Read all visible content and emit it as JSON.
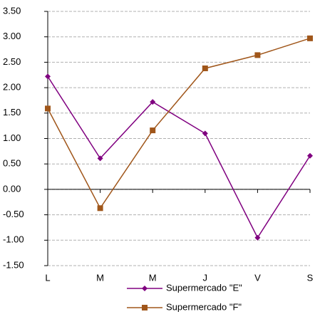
{
  "chart_data": {
    "type": "line",
    "categories": [
      "L",
      "M",
      "M",
      "J",
      "V",
      "S"
    ],
    "series": [
      {
        "name": "Supermercado \"E\"",
        "color": "#800080",
        "marker": "diamond",
        "values": [
          2.22,
          0.61,
          1.72,
          1.1,
          -0.95,
          0.66
        ]
      },
      {
        "name": "Supermercado \"F\"",
        "color": "#a0561a",
        "marker": "square",
        "values": [
          1.59,
          -0.37,
          1.16,
          2.38,
          2.64,
          2.97
        ]
      }
    ],
    "ylim": [
      -1.5,
      3.5
    ],
    "yticks": [
      {
        "value": -1.5,
        "label": "-1.50"
      },
      {
        "value": -1,
        "label": "-1.00"
      },
      {
        "value": -0.5,
        "label": "-0.50"
      },
      {
        "value": 0,
        "label": "0.00"
      },
      {
        "value": 0.5,
        "label": "0.50"
      },
      {
        "value": 1,
        "label": "1.00"
      },
      {
        "value": 1.5,
        "label": "1.50"
      },
      {
        "value": 2,
        "label": "2.00"
      },
      {
        "value": 2.5,
        "label": "2.50"
      },
      {
        "value": 3,
        "label": "3.00"
      },
      {
        "value": 3.5,
        "label": "3.50"
      }
    ],
    "grid": true,
    "legend": "bottom"
  }
}
